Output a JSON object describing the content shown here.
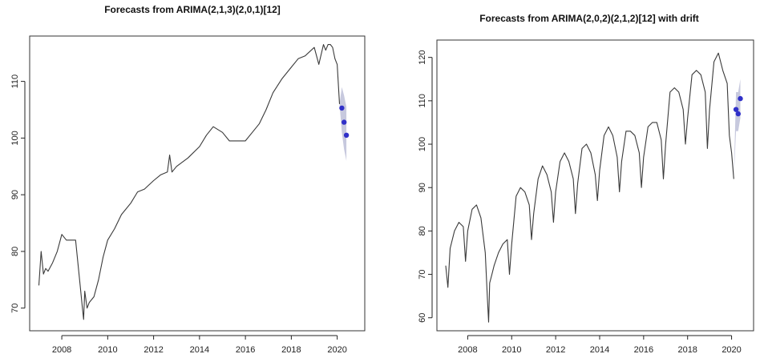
{
  "chart_data": [
    {
      "type": "line",
      "title": "Forecasts from ARIMA(2,1,3)(2,0,1)[12]",
      "xlabel": "",
      "ylabel": "",
      "xlim": [
        2006.6,
        2021.2
      ],
      "ylim": [
        66,
        118
      ],
      "x_ticks": [
        2008,
        2010,
        2012,
        2014,
        2016,
        2018,
        2020
      ],
      "x_tick_labels": [
        "2008",
        "2010",
        "2012",
        "2014",
        "2016",
        "2018",
        "2020"
      ],
      "y_ticks": [
        70,
        80,
        90,
        100,
        110
      ],
      "y_tick_labels": [
        "70",
        "80",
        "90",
        "100",
        "110"
      ],
      "grid": false,
      "series": [
        {
          "x": [
            2007.0,
            2007.1,
            2007.2,
            2007.3,
            2007.4,
            2007.6,
            2007.8,
            2008.0,
            2008.2,
            2008.4,
            2008.6,
            2008.8,
            2008.9,
            2008.95,
            2009.0,
            2009.1,
            2009.2,
            2009.4,
            2009.6,
            2009.8,
            2010.0,
            2010.3,
            2010.6,
            2011.0,
            2011.3,
            2011.6,
            2012.0,
            2012.3,
            2012.6,
            2012.7,
            2012.8,
            2013.0,
            2013.5,
            2014.0,
            2014.3,
            2014.6,
            2015.0,
            2015.3,
            2015.6,
            2016.0,
            2016.3,
            2016.6,
            2016.9,
            2017.2,
            2017.6,
            2018.0,
            2018.3,
            2018.6,
            2019.0,
            2019.2,
            2019.4,
            2019.5,
            2019.6,
            2019.7,
            2019.8,
            2019.9,
            2020.0,
            2020.1
          ],
          "values": [
            74,
            80,
            76,
            77,
            76.5,
            78,
            80,
            83,
            82,
            82,
            82,
            74,
            70,
            68,
            73,
            70,
            71,
            72,
            75,
            79,
            82,
            84,
            86.5,
            88.5,
            90.5,
            91,
            92.5,
            93.5,
            94,
            97,
            94,
            95,
            96.5,
            98.5,
            100.5,
            102,
            101,
            99.5,
            99.5,
            99.5,
            101,
            102.5,
            105,
            108,
            110.5,
            112.5,
            114,
            114.5,
            116,
            113,
            116.5,
            115.5,
            116.5,
            116.5,
            116,
            114,
            113,
            106
          ]
        },
        {
          "name": "forecast",
          "x": [
            2020.2,
            2020.3,
            2020.4
          ],
          "values": [
            105.3,
            102.8,
            100.5
          ],
          "lower": [
            101,
            98,
            96
          ],
          "upper": [
            109,
            107.5,
            105.5
          ]
        }
      ]
    },
    {
      "type": "line",
      "title": "Forecasts from ARIMA(2,0,2)(2,1,2)[12] with drift",
      "xlabel": "",
      "ylabel": "",
      "xlim": [
        2006.6,
        2021.0
      ],
      "ylim": [
        57,
        124
      ],
      "x_ticks": [
        2008,
        2010,
        2012,
        2014,
        2016,
        2018,
        2020
      ],
      "x_tick_labels": [
        "2008",
        "2010",
        "2012",
        "2014",
        "2016",
        "2018",
        "2020"
      ],
      "y_ticks": [
        60,
        70,
        80,
        90,
        100,
        110,
        120
      ],
      "y_tick_labels": [
        "60",
        "70",
        "80",
        "90",
        "100",
        "110",
        "120"
      ],
      "grid": false,
      "series": [
        {
          "x": [
            2007.0,
            2007.1,
            2007.2,
            2007.4,
            2007.6,
            2007.8,
            2007.9,
            2008.0,
            2008.2,
            2008.4,
            2008.6,
            2008.8,
            2008.9,
            2008.95,
            2009.0,
            2009.1,
            2009.2,
            2009.4,
            2009.6,
            2009.8,
            2009.9,
            2010.0,
            2010.2,
            2010.4,
            2010.6,
            2010.8,
            2010.9,
            2011.0,
            2011.2,
            2011.4,
            2011.6,
            2011.8,
            2011.9,
            2012.0,
            2012.2,
            2012.4,
            2012.6,
            2012.8,
            2012.9,
            2013.0,
            2013.2,
            2013.4,
            2013.6,
            2013.8,
            2013.9,
            2014.0,
            2014.2,
            2014.4,
            2014.6,
            2014.8,
            2014.9,
            2015.0,
            2015.2,
            2015.4,
            2015.6,
            2015.8,
            2015.9,
            2016.0,
            2016.2,
            2016.4,
            2016.6,
            2016.8,
            2016.9,
            2017.0,
            2017.2,
            2017.4,
            2017.6,
            2017.8,
            2017.9,
            2018.0,
            2018.2,
            2018.4,
            2018.6,
            2018.8,
            2018.9,
            2019.0,
            2019.2,
            2019.4,
            2019.6,
            2019.8,
            2019.9,
            2020.0,
            2020.1
          ],
          "values": [
            72,
            67,
            76,
            80,
            82,
            81,
            73,
            80,
            85,
            86,
            83,
            75,
            64,
            59,
            68,
            70,
            72,
            75,
            77,
            78,
            70,
            77,
            88,
            90,
            89,
            86,
            78,
            84,
            92,
            95,
            93,
            89,
            82,
            89,
            96,
            98,
            96,
            92,
            84,
            91,
            99,
            100,
            98,
            93,
            87,
            94,
            102,
            104,
            102,
            97,
            89,
            96,
            103,
            103,
            102,
            98,
            90,
            97,
            104,
            105,
            105,
            101,
            92,
            100,
            112,
            113,
            112,
            108,
            100,
            106,
            116,
            117,
            116,
            112,
            99,
            108,
            119,
            121,
            117,
            114,
            102,
            98,
            92
          ]
        },
        {
          "name": "forecast",
          "x": [
            2020.2,
            2020.3,
            2020.4
          ],
          "values": [
            108,
            107,
            110.5
          ],
          "lower": [
            103,
            103,
            106
          ],
          "upper": [
            112,
            112,
            115
          ]
        }
      ]
    }
  ]
}
